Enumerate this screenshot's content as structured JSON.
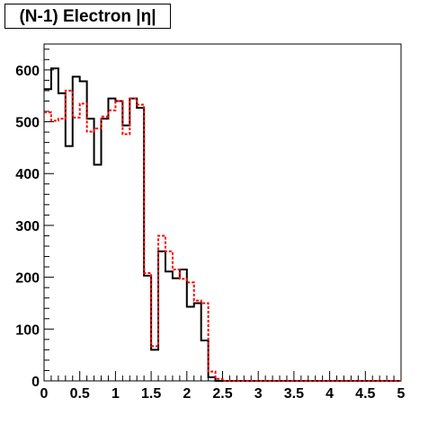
{
  "chart_data": {
    "type": "line",
    "style": "step-histogram",
    "title": "(N-1) Electron |η|",
    "xlabel": "",
    "ylabel": "",
    "xlim": [
      0,
      5
    ],
    "ylim": [
      0,
      650
    ],
    "x_ticks": [
      "0",
      "0.5",
      "1",
      "1.5",
      "2",
      "2.5",
      "3",
      "3.5",
      "4",
      "4.5",
      "5"
    ],
    "y_ticks": [
      "0",
      "100",
      "200",
      "300",
      "400",
      "500",
      "600"
    ],
    "bin_edges_start": 0,
    "bin_width": 0.1,
    "series": [
      {
        "color": "#000000",
        "dash": "solid",
        "values": [
          563,
          603,
          555,
          453,
          587,
          578,
          506,
          417,
          506,
          545,
          540,
          493,
          545,
          527,
          203,
          60,
          250,
          211,
          198,
          215,
          143,
          150,
          78,
          7,
          0,
          0,
          0,
          0,
          0,
          0,
          0,
          0,
          0,
          0,
          0,
          0,
          0,
          0,
          0,
          0,
          0,
          0,
          0,
          0,
          0,
          0,
          0,
          0,
          0,
          0
        ]
      },
      {
        "color": "#ff0000",
        "dash": "dotted",
        "values": [
          518,
          502,
          506,
          560,
          508,
          535,
          481,
          487,
          510,
          522,
          540,
          476,
          545,
          533,
          208,
          67,
          280,
          250,
          215,
          197,
          190,
          155,
          150,
          18,
          4,
          0,
          0,
          0,
          0,
          0,
          0,
          0,
          0,
          0,
          0,
          0,
          0,
          0,
          0,
          0,
          0,
          0,
          0,
          0,
          0,
          0,
          0,
          0,
          0,
          0
        ]
      }
    ]
  }
}
